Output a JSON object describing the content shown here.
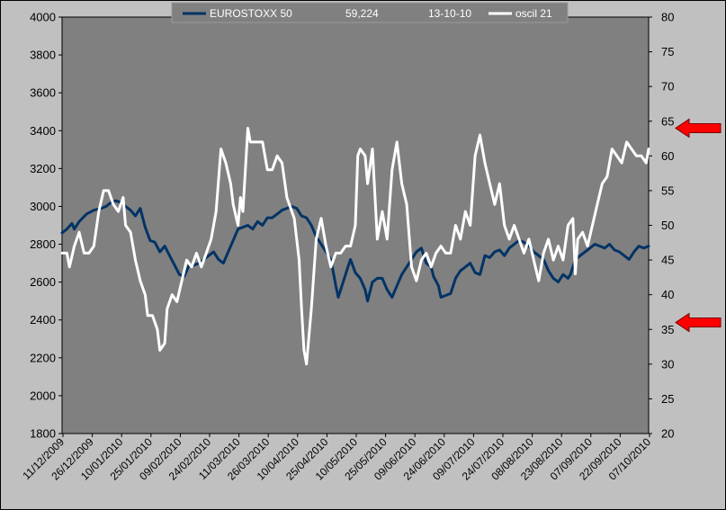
{
  "chart_data": {
    "type": "line",
    "legend": {
      "placement": "top",
      "entries": [
        {
          "name": "EUROSTOXX 50",
          "color": "#003366"
        },
        {
          "name": "oscil 21",
          "color": "#ffffff"
        }
      ],
      "value_text": "59,224",
      "date_text": "13-10-10"
    },
    "plot_background": "#808080",
    "y_left": {
      "min": 1800,
      "max": 4000,
      "step": 200,
      "ticks": [
        "1800",
        "2000",
        "2200",
        "2400",
        "2600",
        "2800",
        "3000",
        "3200",
        "3400",
        "3600",
        "3800",
        "4000"
      ]
    },
    "y_right": {
      "min": 20,
      "max": 80,
      "step": 5,
      "ticks": [
        "20",
        "25",
        "30",
        "35",
        "40",
        "45",
        "50",
        "55",
        "60",
        "65",
        "70",
        "75",
        "80"
      ]
    },
    "x_ticks": [
      "11/12/2009",
      "26/12/2009",
      "10/01/2010",
      "25/01/2010",
      "09/02/2010",
      "24/02/2010",
      "11/03/2010",
      "26/03/2010",
      "10/04/2010",
      "25/04/2010",
      "10/05/2010",
      "25/05/2010",
      "09/06/2010",
      "24/06/2010",
      "09/07/2010",
      "24/07/2010",
      "08/08/2010",
      "23/08/2010",
      "07/09/2010",
      "22/09/2010",
      "07/10/2010"
    ],
    "x_range": [
      "11/12/2009",
      "13/10/2010"
    ],
    "markers": [
      {
        "type": "red-arrow",
        "axis": "right",
        "value": 64
      },
      {
        "type": "red-arrow",
        "axis": "right",
        "value": 36
      }
    ],
    "series": [
      {
        "name": "EUROSTOXX 50",
        "axis": "left",
        "color": "#003366",
        "points": [
          [
            0,
            2860
          ],
          [
            2,
            2880
          ],
          [
            4,
            2910
          ],
          [
            5,
            2880
          ],
          [
            7,
            2920
          ],
          [
            10,
            2960
          ],
          [
            13,
            2980
          ],
          [
            16,
            2990
          ],
          [
            18,
            3000
          ],
          [
            20,
            3020
          ],
          [
            22,
            3030
          ],
          [
            24,
            3020
          ],
          [
            26,
            3000
          ],
          [
            28,
            2980
          ],
          [
            30,
            2950
          ],
          [
            32,
            2990
          ],
          [
            34,
            2890
          ],
          [
            36,
            2820
          ],
          [
            38,
            2810
          ],
          [
            40,
            2760
          ],
          [
            42,
            2790
          ],
          [
            44,
            2740
          ],
          [
            46,
            2690
          ],
          [
            48,
            2640
          ],
          [
            50,
            2630
          ],
          [
            52,
            2690
          ],
          [
            54,
            2690
          ],
          [
            56,
            2700
          ],
          [
            58,
            2720
          ],
          [
            60,
            2740
          ],
          [
            62,
            2760
          ],
          [
            64,
            2720
          ],
          [
            66,
            2700
          ],
          [
            68,
            2760
          ],
          [
            70,
            2820
          ],
          [
            72,
            2880
          ],
          [
            74,
            2890
          ],
          [
            76,
            2900
          ],
          [
            78,
            2880
          ],
          [
            80,
            2920
          ],
          [
            82,
            2900
          ],
          [
            84,
            2940
          ],
          [
            86,
            2940
          ],
          [
            88,
            2960
          ],
          [
            90,
            2980
          ],
          [
            92,
            2990
          ],
          [
            94,
            3000
          ],
          [
            96,
            2990
          ],
          [
            98,
            2950
          ],
          [
            100,
            2940
          ],
          [
            102,
            2900
          ],
          [
            104,
            2840
          ],
          [
            106,
            2800
          ],
          [
            108,
            2760
          ],
          [
            110,
            2720
          ],
          [
            112,
            2580
          ],
          [
            113,
            2520
          ],
          [
            115,
            2600
          ],
          [
            117,
            2680
          ],
          [
            118,
            2720
          ],
          [
            120,
            2650
          ],
          [
            122,
            2620
          ],
          [
            124,
            2560
          ],
          [
            125,
            2500
          ],
          [
            127,
            2600
          ],
          [
            129,
            2620
          ],
          [
            131,
            2620
          ],
          [
            133,
            2560
          ],
          [
            135,
            2520
          ],
          [
            137,
            2580
          ],
          [
            139,
            2640
          ],
          [
            141,
            2680
          ],
          [
            143,
            2720
          ],
          [
            145,
            2760
          ],
          [
            147,
            2780
          ],
          [
            149,
            2700
          ],
          [
            151,
            2680
          ],
          [
            152,
            2630
          ],
          [
            154,
            2580
          ],
          [
            155,
            2520
          ],
          [
            157,
            2530
          ],
          [
            159,
            2540
          ],
          [
            161,
            2620
          ],
          [
            163,
            2660
          ],
          [
            165,
            2680
          ],
          [
            167,
            2700
          ],
          [
            169,
            2650
          ],
          [
            171,
            2640
          ],
          [
            173,
            2740
          ],
          [
            175,
            2730
          ],
          [
            177,
            2760
          ],
          [
            179,
            2770
          ],
          [
            181,
            2740
          ],
          [
            183,
            2780
          ],
          [
            185,
            2800
          ],
          [
            187,
            2820
          ],
          [
            189,
            2810
          ],
          [
            191,
            2790
          ],
          [
            193,
            2760
          ],
          [
            195,
            2740
          ],
          [
            197,
            2720
          ],
          [
            199,
            2660
          ],
          [
            201,
            2620
          ],
          [
            203,
            2600
          ],
          [
            205,
            2640
          ],
          [
            207,
            2620
          ],
          [
            208,
            2640
          ],
          [
            210,
            2720
          ],
          [
            212,
            2740
          ],
          [
            214,
            2760
          ],
          [
            216,
            2780
          ],
          [
            218,
            2800
          ],
          [
            220,
            2790
          ],
          [
            222,
            2780
          ],
          [
            224,
            2800
          ],
          [
            226,
            2770
          ],
          [
            228,
            2760
          ],
          [
            230,
            2740
          ],
          [
            232,
            2720
          ],
          [
            234,
            2760
          ],
          [
            236,
            2790
          ],
          [
            238,
            2780
          ],
          [
            240,
            2790
          ]
        ]
      },
      {
        "name": "oscil 21",
        "axis": "right",
        "color": "#ffffff",
        "points": [
          [
            0,
            46
          ],
          [
            2,
            46
          ],
          [
            3,
            44
          ],
          [
            5,
            47
          ],
          [
            7,
            49
          ],
          [
            9,
            46
          ],
          [
            11,
            46
          ],
          [
            13,
            47
          ],
          [
            15,
            52
          ],
          [
            17,
            55
          ],
          [
            19,
            55
          ],
          [
            21,
            53
          ],
          [
            23,
            52
          ],
          [
            25,
            54
          ],
          [
            26,
            50
          ],
          [
            28,
            49
          ],
          [
            30,
            45
          ],
          [
            32,
            42
          ],
          [
            34,
            40
          ],
          [
            35,
            37
          ],
          [
            37,
            37
          ],
          [
            39,
            35
          ],
          [
            40,
            32
          ],
          [
            42,
            33
          ],
          [
            43,
            38
          ],
          [
            45,
            40
          ],
          [
            47,
            39
          ],
          [
            49,
            42
          ],
          [
            51,
            45
          ],
          [
            53,
            44
          ],
          [
            55,
            46
          ],
          [
            57,
            44
          ],
          [
            59,
            46
          ],
          [
            61,
            48
          ],
          [
            63,
            52
          ],
          [
            65,
            61
          ],
          [
            67,
            59
          ],
          [
            69,
            56
          ],
          [
            70,
            53
          ],
          [
            72,
            50
          ],
          [
            73,
            54
          ],
          [
            74,
            52
          ],
          [
            76,
            64
          ],
          [
            77,
            62
          ],
          [
            78,
            62
          ],
          [
            80,
            62
          ],
          [
            82,
            62
          ],
          [
            84,
            58
          ],
          [
            86,
            58
          ],
          [
            88,
            60
          ],
          [
            90,
            59
          ],
          [
            92,
            54
          ],
          [
            94,
            52
          ],
          [
            95,
            51
          ],
          [
            97,
            45
          ],
          [
            98,
            38
          ],
          [
            99,
            32
          ],
          [
            100,
            30
          ],
          [
            102,
            38
          ],
          [
            104,
            48
          ],
          [
            106,
            51
          ],
          [
            108,
            47
          ],
          [
            110,
            44
          ],
          [
            112,
            46
          ],
          [
            114,
            46
          ],
          [
            116,
            47
          ],
          [
            118,
            47
          ],
          [
            120,
            50
          ],
          [
            121,
            60
          ],
          [
            122,
            61
          ],
          [
            124,
            60
          ],
          [
            125,
            56
          ],
          [
            127,
            61
          ],
          [
            129,
            48
          ],
          [
            131,
            52
          ],
          [
            133,
            48
          ],
          [
            135,
            58
          ],
          [
            137,
            62
          ],
          [
            139,
            56
          ],
          [
            141,
            53
          ],
          [
            143,
            44
          ],
          [
            145,
            42
          ],
          [
            147,
            45
          ],
          [
            149,
            46
          ],
          [
            151,
            44
          ],
          [
            153,
            46
          ],
          [
            155,
            47
          ],
          [
            157,
            46
          ],
          [
            159,
            46
          ],
          [
            161,
            50
          ],
          [
            163,
            48
          ],
          [
            165,
            52
          ],
          [
            167,
            50
          ],
          [
            169,
            60
          ],
          [
            171,
            63
          ],
          [
            173,
            59
          ],
          [
            175,
            56
          ],
          [
            177,
            53
          ],
          [
            179,
            56
          ],
          [
            181,
            50
          ],
          [
            183,
            48
          ],
          [
            185,
            50
          ],
          [
            187,
            48
          ],
          [
            189,
            46
          ],
          [
            191,
            48
          ],
          [
            193,
            45
          ],
          [
            195,
            42
          ],
          [
            197,
            46
          ],
          [
            199,
            48
          ],
          [
            201,
            45
          ],
          [
            203,
            47
          ],
          [
            205,
            45
          ],
          [
            207,
            50
          ],
          [
            209,
            51
          ],
          [
            210,
            43
          ],
          [
            211,
            48
          ],
          [
            213,
            49
          ],
          [
            215,
            47
          ],
          [
            217,
            50
          ],
          [
            219,
            53
          ],
          [
            221,
            56
          ],
          [
            223,
            57
          ],
          [
            225,
            61
          ],
          [
            227,
            60
          ],
          [
            229,
            59
          ],
          [
            231,
            62
          ],
          [
            233,
            61
          ],
          [
            235,
            60
          ],
          [
            237,
            60
          ],
          [
            239,
            59
          ],
          [
            240,
            61
          ]
        ]
      }
    ]
  }
}
